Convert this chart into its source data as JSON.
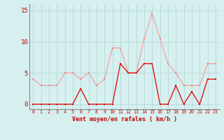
{
  "x": [
    0,
    1,
    2,
    3,
    4,
    5,
    6,
    7,
    8,
    9,
    10,
    11,
    12,
    13,
    14,
    15,
    16,
    17,
    18,
    19,
    20,
    21,
    22,
    23
  ],
  "rafales": [
    4,
    3,
    3,
    3,
    5,
    5,
    4,
    5,
    3,
    4,
    9,
    9,
    5,
    5,
    10.5,
    14.5,
    10.5,
    6.5,
    5,
    3,
    3,
    3,
    6.5,
    6.5
  ],
  "moyen": [
    0,
    0,
    0,
    0,
    0,
    0,
    2.5,
    0,
    0,
    0,
    0,
    6.5,
    5,
    5,
    6.5,
    6.5,
    0,
    0,
    3,
    0,
    2,
    0,
    4,
    4
  ],
  "bg_color": "#d6f0f0",
  "grid_color": "#b8d8d8",
  "line_color_rafales": "#f0a0a0",
  "line_color_moyen": "#dd0000",
  "marker_color_rafales": "#f08080",
  "marker_color_moyen": "#dd0000",
  "xlabel": "Vent moyen/en rafales ( km/h )",
  "ylim": [
    -0.8,
    16.0
  ],
  "yticks": [
    0,
    5,
    10,
    15
  ],
  "xlim": [
    -0.5,
    23.5
  ],
  "spine_color": "#888888"
}
